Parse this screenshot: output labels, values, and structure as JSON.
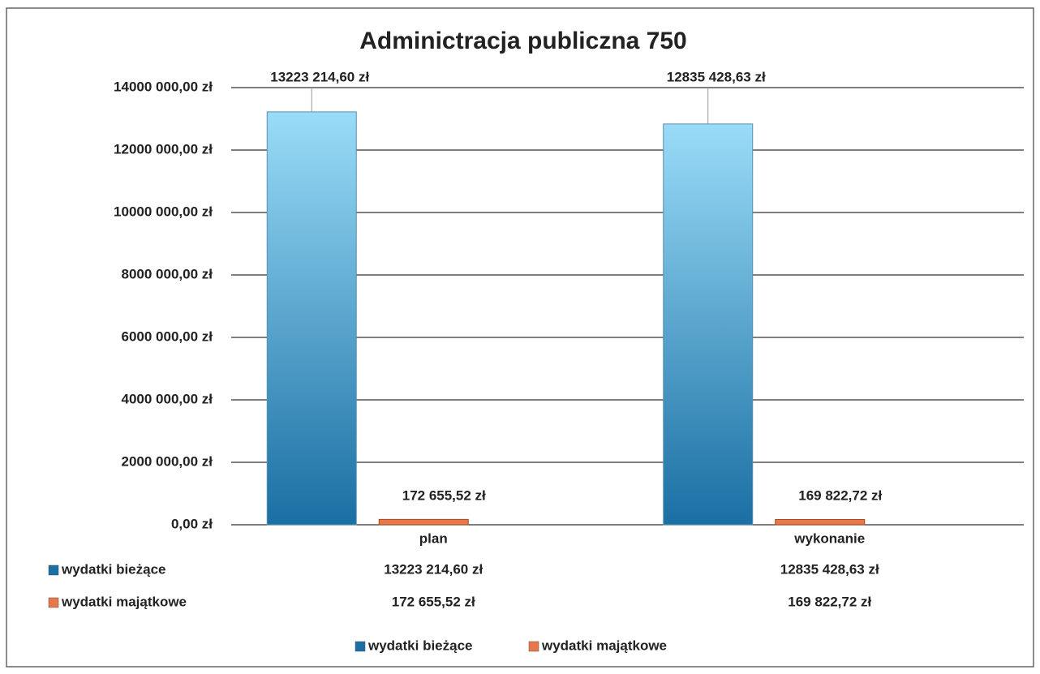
{
  "chart_data": {
    "type": "bar",
    "title": "Adminictracja publiczna 750",
    "categories": [
      "plan",
      "wykonanie"
    ],
    "series": [
      {
        "name": "wydatki bieżące",
        "color": "#1a6fa3",
        "values": [
          13223214.6,
          12835428.63
        ],
        "value_labels": [
          "13223 214,60 zł",
          "12835 428,63 zł"
        ]
      },
      {
        "name": "wydatki majątkowe",
        "color": "#e8784a",
        "values": [
          172655.52,
          169822.72
        ],
        "value_labels": [
          "172 655,52 zł",
          "169 822,72 zł"
        ]
      }
    ],
    "ylim": [
      0,
      14000000
    ],
    "yticks": [
      {
        "value": 0,
        "label": "0,00 zł"
      },
      {
        "value": 2000000,
        "label": "2000 000,00 zł"
      },
      {
        "value": 4000000,
        "label": "4000 000,00 zł"
      },
      {
        "value": 6000000,
        "label": "6000 000,00 zł"
      },
      {
        "value": 8000000,
        "label": "8000 000,00 zł"
      },
      {
        "value": 10000000,
        "label": "10000 000,00 zł"
      },
      {
        "value": 12000000,
        "label": "12000 000,00 zł"
      },
      {
        "value": 14000000,
        "label": "14000 000,00 zł"
      }
    ],
    "grid": true,
    "legend": "bottom"
  }
}
